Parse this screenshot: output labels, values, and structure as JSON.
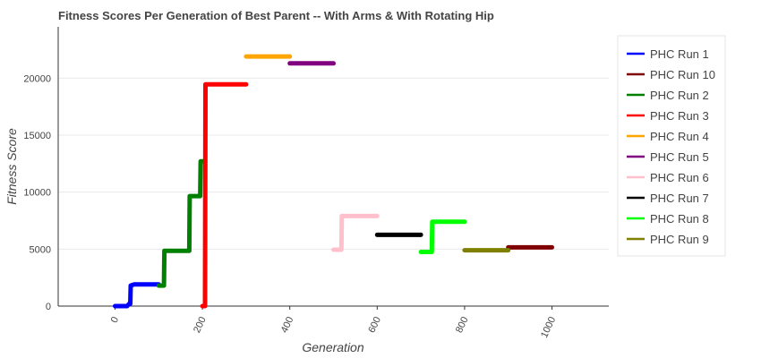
{
  "chart_data": {
    "type": "line",
    "title": "Fitness Scores Per Generation of Best Parent -- With Arms & With Rotating Hip",
    "xlabel": "Generation",
    "ylabel": "Fitness Score",
    "xlim": [
      -130,
      1130
    ],
    "ylim": [
      0,
      24500
    ],
    "xticks": [
      0,
      200,
      400,
      600,
      800,
      1000
    ],
    "yticks": [
      0,
      5000,
      10000,
      15000,
      20000
    ],
    "grid": "horizontal",
    "legend_position": "right",
    "series": [
      {
        "name": "PHC Run 1",
        "color": "#0000ff",
        "points": [
          [
            0,
            0
          ],
          [
            28,
            0
          ],
          [
            32,
            200
          ],
          [
            35,
            200
          ],
          [
            36,
            1800
          ],
          [
            40,
            1850
          ],
          [
            44,
            1900
          ],
          [
            100,
            1900
          ]
        ]
      },
      {
        "name": "PHC Run 10",
        "color": "#800000",
        "points": [
          [
            900,
            5150
          ],
          [
            1000,
            5150
          ]
        ]
      },
      {
        "name": "PHC Run 2",
        "color": "#008000",
        "points": [
          [
            100,
            1800
          ],
          [
            112,
            1800
          ],
          [
            113,
            4850
          ],
          [
            170,
            4850
          ],
          [
            171,
            9650
          ],
          [
            195,
            9650
          ],
          [
            196,
            12700
          ],
          [
            200,
            12700
          ]
        ]
      },
      {
        "name": "PHC Run 3",
        "color": "#ff0000",
        "points": [
          [
            200,
            0
          ],
          [
            206,
            0
          ],
          [
            207,
            19450
          ],
          [
            300,
            19450
          ]
        ]
      },
      {
        "name": "PHC Run 4",
        "color": "#ffa500",
        "points": [
          [
            300,
            21900
          ],
          [
            400,
            21900
          ]
        ]
      },
      {
        "name": "PHC Run 5",
        "color": "#800080",
        "points": [
          [
            400,
            21300
          ],
          [
            500,
            21300
          ]
        ]
      },
      {
        "name": "PHC Run 6",
        "color": "#ffc0cb",
        "points": [
          [
            500,
            4950
          ],
          [
            518,
            4950
          ],
          [
            519,
            7900
          ],
          [
            600,
            7900
          ]
        ]
      },
      {
        "name": "PHC Run 7",
        "color": "#000000",
        "points": [
          [
            600,
            6250
          ],
          [
            700,
            6250
          ]
        ]
      },
      {
        "name": "PHC Run 8",
        "color": "#00ff00",
        "points": [
          [
            700,
            4750
          ],
          [
            725,
            4750
          ],
          [
            726,
            7400
          ],
          [
            800,
            7400
          ]
        ]
      },
      {
        "name": "PHC Run 9",
        "color": "#808000",
        "points": [
          [
            800,
            4900
          ],
          [
            900,
            4900
          ]
        ]
      }
    ]
  }
}
